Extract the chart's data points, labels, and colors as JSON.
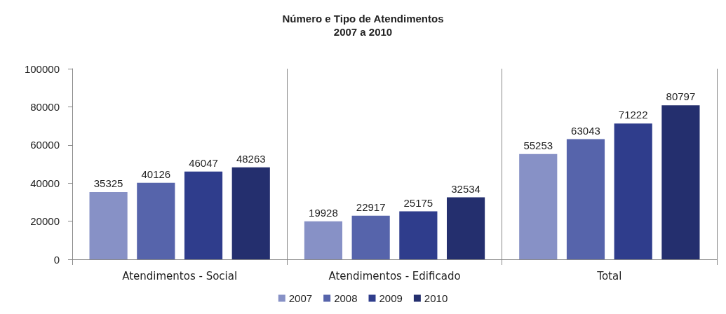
{
  "chart_data": {
    "type": "bar",
    "title": "Número e Tipo de Atendimentos\n2007 a 2010",
    "categories": [
      "Atendimentos - Social",
      "Atendimentos - Edificado",
      "Total"
    ],
    "series": [
      {
        "name": "2007",
        "color": "#8791c6",
        "values": [
          35325,
          19928,
          55253
        ]
      },
      {
        "name": "2008",
        "color": "#5664ab",
        "values": [
          40126,
          22917,
          63043
        ]
      },
      {
        "name": "2009",
        "color": "#2f3d8c",
        "values": [
          46047,
          25175,
          71222
        ]
      },
      {
        "name": "2010",
        "color": "#242f6e",
        "values": [
          48263,
          32534,
          80797
        ]
      }
    ],
    "ylim": [
      0,
      100000
    ],
    "yticks": [
      0,
      20000,
      40000,
      60000,
      80000,
      100000
    ],
    "grid": "x",
    "legend": "bottom",
    "data_labels": true
  }
}
